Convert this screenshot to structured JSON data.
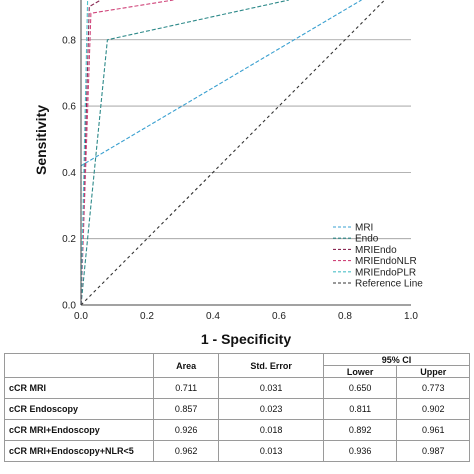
{
  "chart_data": {
    "type": "line",
    "xlabel": "1 - Specificity",
    "ylabel": "Sensitivity",
    "xlim": [
      0,
      1
    ],
    "ylim": [
      0,
      0.92
    ],
    "x_ticks": [
      "0.0",
      "0.2",
      "0.4",
      "0.6",
      "0.8",
      "1.0"
    ],
    "y_ticks": [
      "0.0",
      "0.2",
      "0.4",
      "0.6",
      "0.8"
    ],
    "grid": "horizontal",
    "legend_position": "bottom-right",
    "series": [
      {
        "name": "MRI",
        "color": "#3aa0d0",
        "dash": "4,2",
        "points": [
          [
            0,
            0
          ],
          [
            0,
            0.42
          ],
          [
            0.85,
            0.92
          ]
        ]
      },
      {
        "name": "Endo",
        "color": "#2e8a8a",
        "dash": "4,2",
        "points": [
          [
            0,
            0
          ],
          [
            0.08,
            0.8
          ],
          [
            0.63,
            0.92
          ]
        ]
      },
      {
        "name": "MRIEndo",
        "color": "#8a2a55",
        "dash": "4,2",
        "points": [
          [
            0,
            0
          ],
          [
            0.025,
            0.9
          ],
          [
            0.06,
            0.92
          ]
        ]
      },
      {
        "name": "MRIEndoNLR",
        "color": "#d0447a",
        "dash": "4,2",
        "points": [
          [
            0,
            0
          ],
          [
            0.03,
            0.88
          ],
          [
            0.28,
            0.92
          ]
        ]
      },
      {
        "name": "MRIEndoPLR",
        "color": "#4ec0c8",
        "dash": "4,2",
        "points": [
          [
            0,
            0
          ],
          [
            0.02,
            0.92
          ]
        ]
      },
      {
        "name": "Reference Line",
        "color": "#333333",
        "dash": "3,3",
        "points": [
          [
            0,
            0
          ],
          [
            1,
            1
          ]
        ]
      }
    ]
  },
  "table": {
    "headers": {
      "area": "Area",
      "std_error": "Std. Error",
      "ci": "95% CI",
      "lower": "Lower",
      "upper": "Upper"
    },
    "rows": [
      {
        "label": "cCR MRI",
        "area": "0.711",
        "std_error": "0.031",
        "lower": "0.650",
        "upper": "0.773"
      },
      {
        "label": "cCR Endoscopy",
        "area": "0.857",
        "std_error": "0.023",
        "lower": "0.811",
        "upper": "0.902"
      },
      {
        "label": "cCR MRI+Endoscopy",
        "area": "0.926",
        "std_error": "0.018",
        "lower": "0.892",
        "upper": "0.961"
      },
      {
        "label": "cCR MRI+Endoscopy+NLR<5",
        "area": "0.962",
        "std_error": "0.013",
        "lower": "0.936",
        "upper": "0.987"
      }
    ]
  }
}
